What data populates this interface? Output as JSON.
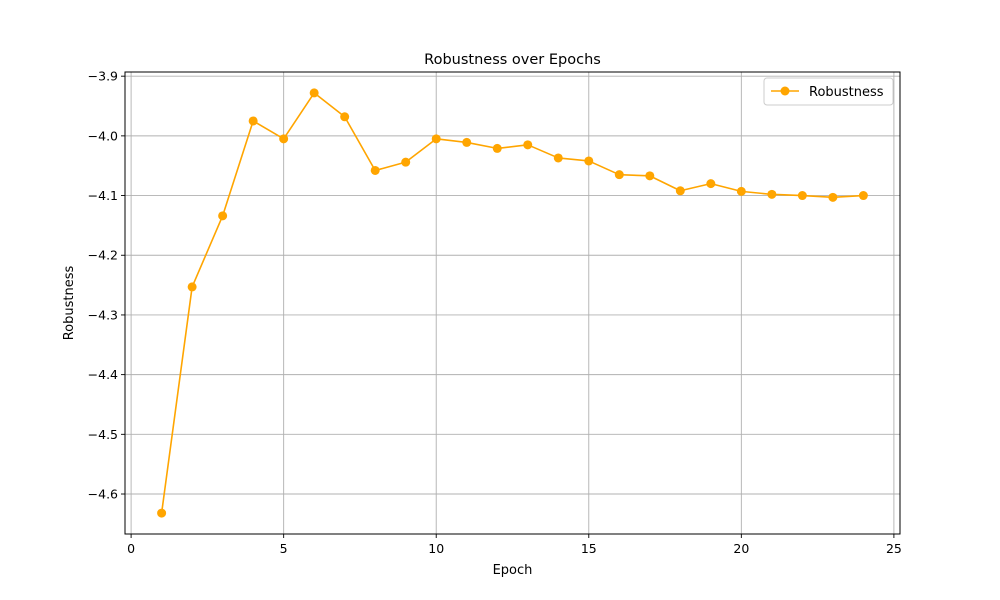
{
  "chart_data": {
    "type": "line",
    "title": "Robustness over Epochs",
    "xlabel": "Epoch",
    "ylabel": "Robustness",
    "xlim": [
      -0.2,
      25.2
    ],
    "ylim": [
      -4.667,
      -3.893
    ],
    "xticks": [
      0,
      5,
      10,
      15,
      20,
      25
    ],
    "yticks": [
      -4.6,
      -4.5,
      -4.4,
      -4.3,
      -4.2,
      -4.1,
      -4.0,
      -3.9
    ],
    "ytick_labels": [
      "−4.6",
      "−4.5",
      "−4.4",
      "−4.3",
      "−4.2",
      "−4.1",
      "−4.0",
      "−3.9"
    ],
    "grid": true,
    "legend_position": "top-right",
    "series": [
      {
        "name": "Robustness",
        "color": "#ffa500",
        "marker": "circle",
        "x": [
          1,
          2,
          3,
          4,
          5,
          6,
          7,
          8,
          9,
          10,
          11,
          12,
          13,
          14,
          15,
          16,
          17,
          18,
          19,
          20,
          21,
          22,
          23,
          24
        ],
        "y": [
          -4.632,
          -4.253,
          -4.134,
          -3.975,
          -4.005,
          -3.928,
          -3.968,
          -4.058,
          -4.044,
          -4.005,
          -4.011,
          -4.021,
          -4.015,
          -4.037,
          -4.042,
          -4.065,
          -4.067,
          -4.092,
          -4.08,
          -4.093,
          -4.098,
          -4.1,
          -4.103,
          -4.1
        ]
      }
    ]
  }
}
